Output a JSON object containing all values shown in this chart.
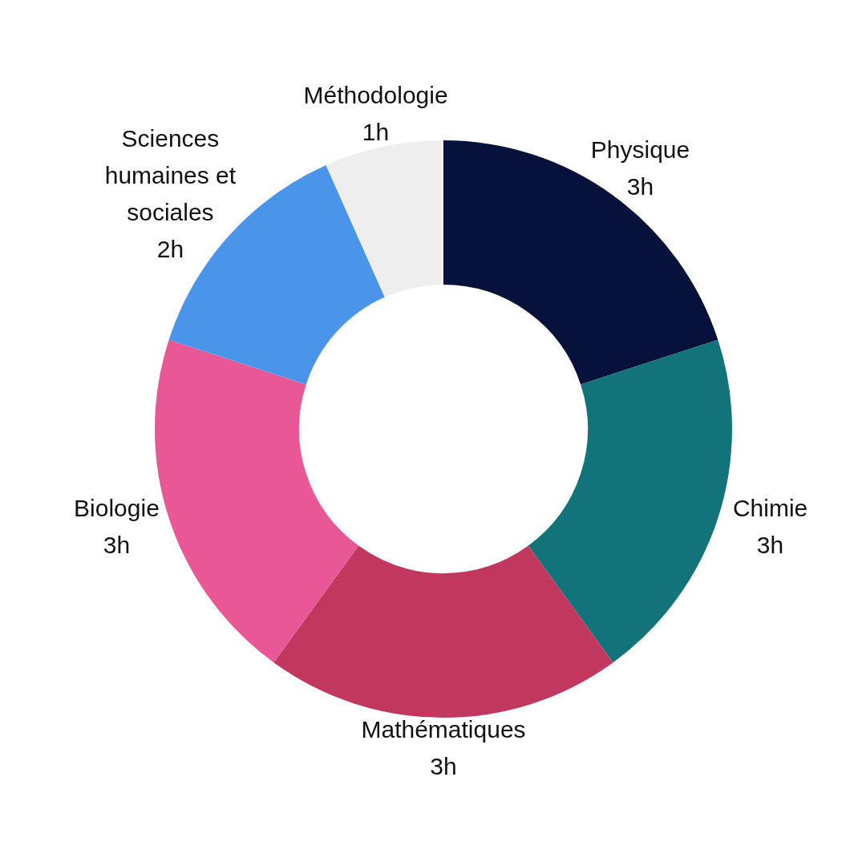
{
  "chart_data": {
    "type": "donut",
    "categories": [
      "Physique",
      "Chimie",
      "Mathématiques",
      "Biologie",
      "Sciences humaines et sociales",
      "Méthodologie"
    ],
    "values": [
      3,
      3,
      3,
      3,
      2,
      1
    ],
    "value_labels": [
      "3h",
      "3h",
      "3h",
      "3h",
      "2h",
      "1h"
    ],
    "colors": [
      "#07123a",
      "#12737a",
      "#c2375e",
      "#e85796",
      "#4a94ea",
      "#eeeeee"
    ],
    "legend": false
  }
}
